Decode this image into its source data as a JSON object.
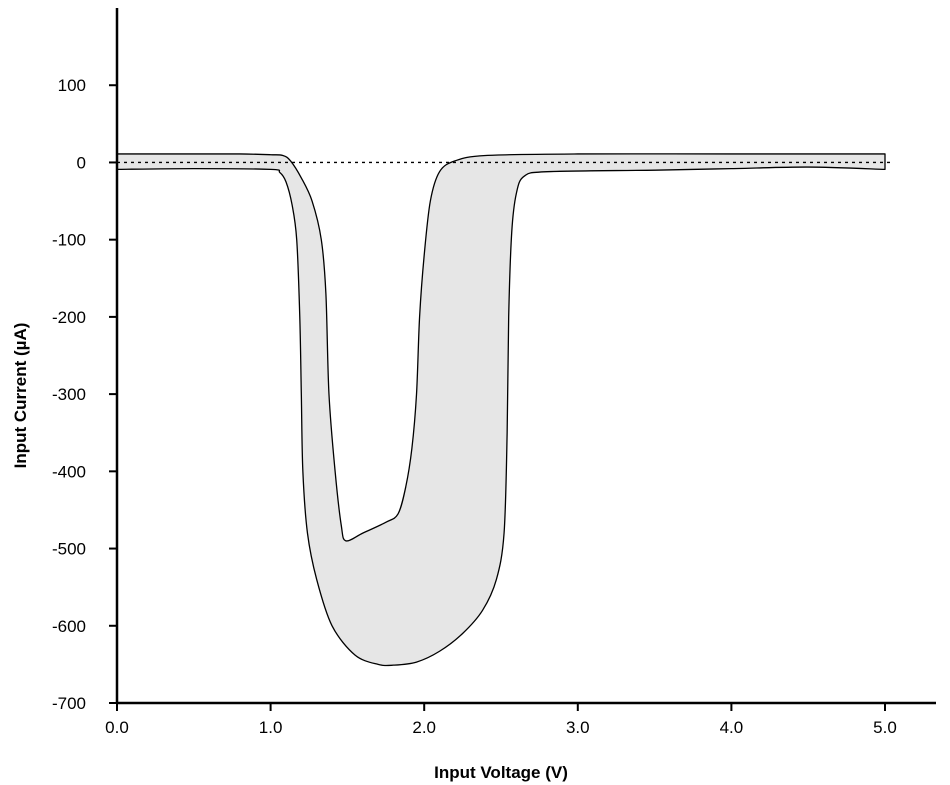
{
  "chart_data": {
    "type": "area",
    "title": "",
    "xlabel": "Input Voltage (V)",
    "ylabel": "Input Current (µA)",
    "xlim": [
      0.0,
      5.0
    ],
    "ylim": [
      -700,
      200
    ],
    "x_ticks": [
      "0.0",
      "1.0",
      "2.0",
      "3.0",
      "4.0",
      "5.0"
    ],
    "y_ticks": [
      "100",
      "0",
      "-100",
      "-200",
      "-300",
      "-400",
      "-500",
      "-600",
      "-700"
    ],
    "grid": false,
    "reference_line": {
      "y": 0,
      "style": "dashed",
      "x_range": [
        0.0,
        5.05
      ]
    },
    "band": {
      "fill": "#e6e6e6",
      "upper": [
        [
          0.0,
          11
        ],
        [
          0.5,
          11
        ],
        [
          0.8,
          11
        ],
        [
          1.0,
          10
        ],
        [
          1.08,
          9
        ],
        [
          1.13,
          2
        ],
        [
          1.2,
          -20
        ],
        [
          1.27,
          -50
        ],
        [
          1.33,
          -100
        ],
        [
          1.36,
          -170
        ],
        [
          1.38,
          -300
        ],
        [
          1.42,
          -400
        ],
        [
          1.46,
          -470
        ],
        [
          1.49,
          -490
        ],
        [
          1.6,
          -480
        ],
        [
          1.75,
          -466
        ],
        [
          1.83,
          -455
        ],
        [
          1.88,
          -420
        ],
        [
          1.92,
          -370
        ],
        [
          1.95,
          -300
        ],
        [
          1.97,
          -200
        ],
        [
          2.0,
          -120
        ],
        [
          2.04,
          -50
        ],
        [
          2.1,
          -12
        ],
        [
          2.2,
          2
        ],
        [
          2.4,
          9
        ],
        [
          3.0,
          11
        ],
        [
          4.0,
          11
        ],
        [
          5.0,
          11
        ]
      ],
      "lower": [
        [
          0.0,
          -9
        ],
        [
          0.5,
          -8
        ],
        [
          1.0,
          -9
        ],
        [
          1.06,
          -13
        ],
        [
          1.1,
          -25
        ],
        [
          1.14,
          -55
        ],
        [
          1.17,
          -100
        ],
        [
          1.19,
          -200
        ],
        [
          1.2,
          -300
        ],
        [
          1.21,
          -400
        ],
        [
          1.24,
          -480
        ],
        [
          1.3,
          -540
        ],
        [
          1.4,
          -600
        ],
        [
          1.55,
          -638
        ],
        [
          1.7,
          -650
        ],
        [
          1.8,
          -651
        ],
        [
          1.95,
          -647
        ],
        [
          2.1,
          -633
        ],
        [
          2.25,
          -610
        ],
        [
          2.38,
          -580
        ],
        [
          2.47,
          -540
        ],
        [
          2.52,
          -480
        ],
        [
          2.54,
          -350
        ],
        [
          2.55,
          -200
        ],
        [
          2.57,
          -90
        ],
        [
          2.6,
          -40
        ],
        [
          2.65,
          -18
        ],
        [
          2.8,
          -12
        ],
        [
          3.5,
          -10
        ],
        [
          4.0,
          -8
        ],
        [
          4.5,
          -6
        ],
        [
          5.0,
          -9
        ]
      ]
    }
  }
}
